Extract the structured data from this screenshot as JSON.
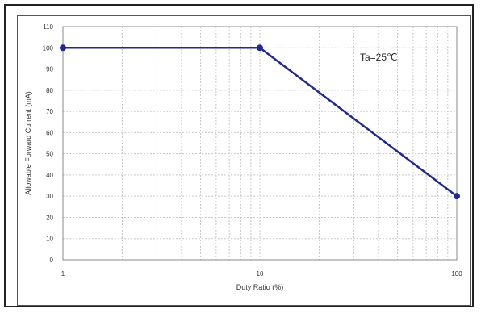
{
  "chart_data": {
    "type": "line",
    "xscale": "log",
    "xlim": [
      1,
      100
    ],
    "ylim": [
      0,
      110
    ],
    "xlabel": "Duty Ratio (%)",
    "ylabel": "Allowable Forward Current (mA)",
    "x_ticks": [
      "1",
      "10",
      "100"
    ],
    "y_ticks": [
      "0",
      "10",
      "20",
      "30",
      "40",
      "50",
      "60",
      "70",
      "80",
      "90",
      "100",
      "110"
    ],
    "annotation": "Ta=25℃",
    "grid": true,
    "series": [
      {
        "x": [
          1,
          10,
          100
        ],
        "y": [
          100,
          100,
          30
        ]
      }
    ],
    "line_color": "#1f2a8a"
  }
}
